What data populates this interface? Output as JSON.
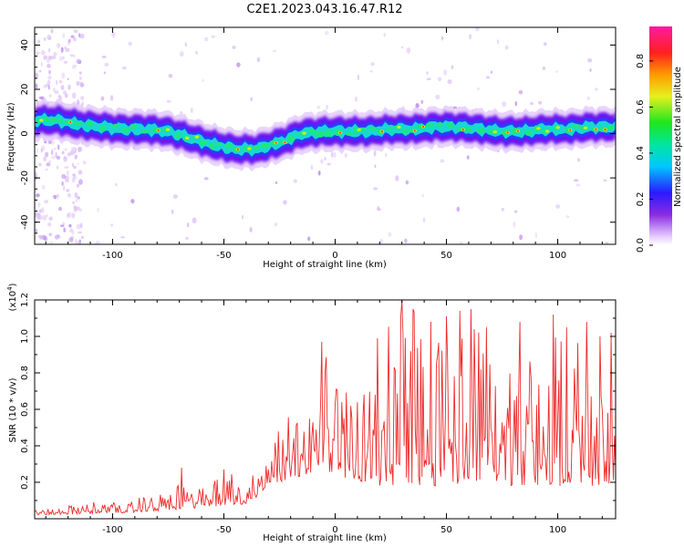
{
  "figure_title": "C2E1.2023.043.16.47.R12",
  "colors": {
    "snr_line": "#ee2a2a",
    "axis": "#000000",
    "spectrogram_ridge": "#19e6b4",
    "spectrogram_halo": "#4a0ff5"
  },
  "colorbar": {
    "label": "Normalized spectral amplitude",
    "ticks": [
      "0.0",
      "0.2",
      "0.4",
      "0.6",
      "0.8"
    ],
    "range": [
      0,
      0.95
    ],
    "colormap": "rainbow (violet-blue-cyan-green-yellow-orange-red-magenta)"
  },
  "chart_data": [
    {
      "type": "heatmap",
      "title": "",
      "xlabel": "Height of straight line (km)",
      "ylabel": "Frequency (Hz)",
      "xlim": [
        -135,
        126
      ],
      "ylim": [
        -50,
        48
      ],
      "x_ticks": [
        -100,
        -50,
        0,
        50,
        100
      ],
      "y_ticks": [
        -40,
        -20,
        0,
        20,
        40
      ],
      "x_tick_labels": [
        "-100",
        "-50",
        "0",
        "50",
        "100"
      ],
      "y_tick_labels": [
        "-40",
        "-20",
        "0",
        "20",
        "40"
      ],
      "ridge": {
        "x": [
          -135,
          -125,
          -115,
          -105,
          -95,
          -85,
          -75,
          -65,
          -55,
          -45,
          -35,
          -25,
          -15,
          -5,
          5,
          15,
          25,
          35,
          45,
          55,
          65,
          75,
          85,
          95,
          105,
          115,
          126
        ],
        "y": [
          6,
          6,
          4,
          3,
          2,
          2,
          1,
          -2,
          -5,
          -7,
          -7,
          -4,
          0,
          1,
          1,
          1,
          2,
          2,
          3,
          3,
          2,
          1,
          1,
          2,
          2,
          3,
          3
        ]
      },
      "grid": false
    },
    {
      "type": "line",
      "title": "",
      "xlabel": "Height of straight line (km)",
      "ylabel": "SNR (10 * v/v)",
      "y_scale_label": "(x10",
      "y_scale_exponent": "4",
      "y_scale_close": ")",
      "xlim": [
        -135,
        126
      ],
      "ylim": [
        0,
        12000
      ],
      "x_ticks": [
        -100,
        -50,
        0,
        50,
        100
      ],
      "y_ticks": [
        2000,
        4000,
        6000,
        8000,
        10000,
        12000
      ],
      "x_tick_labels": [
        "-100",
        "-50",
        "0",
        "50",
        "100"
      ],
      "y_tick_labels": [
        "0.2",
        "0.4",
        "0.6",
        "0.8",
        "1.0",
        "1.2"
      ],
      "series": [
        {
          "color": "#ee2a2a",
          "envelope_x": [
            -135,
            -100,
            -80,
            -70,
            -60,
            -50,
            -40,
            -35,
            -30,
            -20,
            -10,
            -5,
            0,
            5,
            10,
            20,
            30,
            40,
            50,
            60,
            70,
            80,
            90,
            100,
            110,
            120,
            126
          ],
          "envelope_base": [
            200,
            300,
            400,
            500,
            600,
            700,
            800,
            1200,
            1800,
            2200,
            2500,
            2600,
            2500,
            2200,
            2000,
            1800,
            1800,
            1800,
            1800,
            1800,
            1800,
            1800,
            1800,
            1800,
            1800,
            1800,
            1800
          ],
          "envelope_peak": [
            500,
            1100,
            1300,
            2200,
            1800,
            2800,
            2000,
            3800,
            5000,
            5800,
            6000,
            9700,
            8000,
            7800,
            8000,
            9800,
            12000,
            11000,
            11800,
            11200,
            11000,
            11000,
            10800,
            10800,
            10500,
            10200,
            10000
          ],
          "spikes": [
            {
              "x": -69,
              "y": 2800
            },
            {
              "x": -50,
              "y": 2700
            },
            {
              "x": -6,
              "y": 9700
            },
            {
              "x": 19,
              "y": 9900
            },
            {
              "x": 30,
              "y": 12000
            },
            {
              "x": 35,
              "y": 11500
            },
            {
              "x": 43,
              "y": 10800
            },
            {
              "x": 50,
              "y": 11100
            },
            {
              "x": 56,
              "y": 11400
            },
            {
              "x": 61,
              "y": 11500
            },
            {
              "x": 68,
              "y": 10500
            },
            {
              "x": 83,
              "y": 10800
            },
            {
              "x": 98,
              "y": 11200
            },
            {
              "x": 104,
              "y": 10500
            },
            {
              "x": 113,
              "y": 10800
            },
            {
              "x": 119,
              "y": 10000
            },
            {
              "x": 124,
              "y": 10200
            }
          ]
        }
      ],
      "grid": false
    }
  ]
}
